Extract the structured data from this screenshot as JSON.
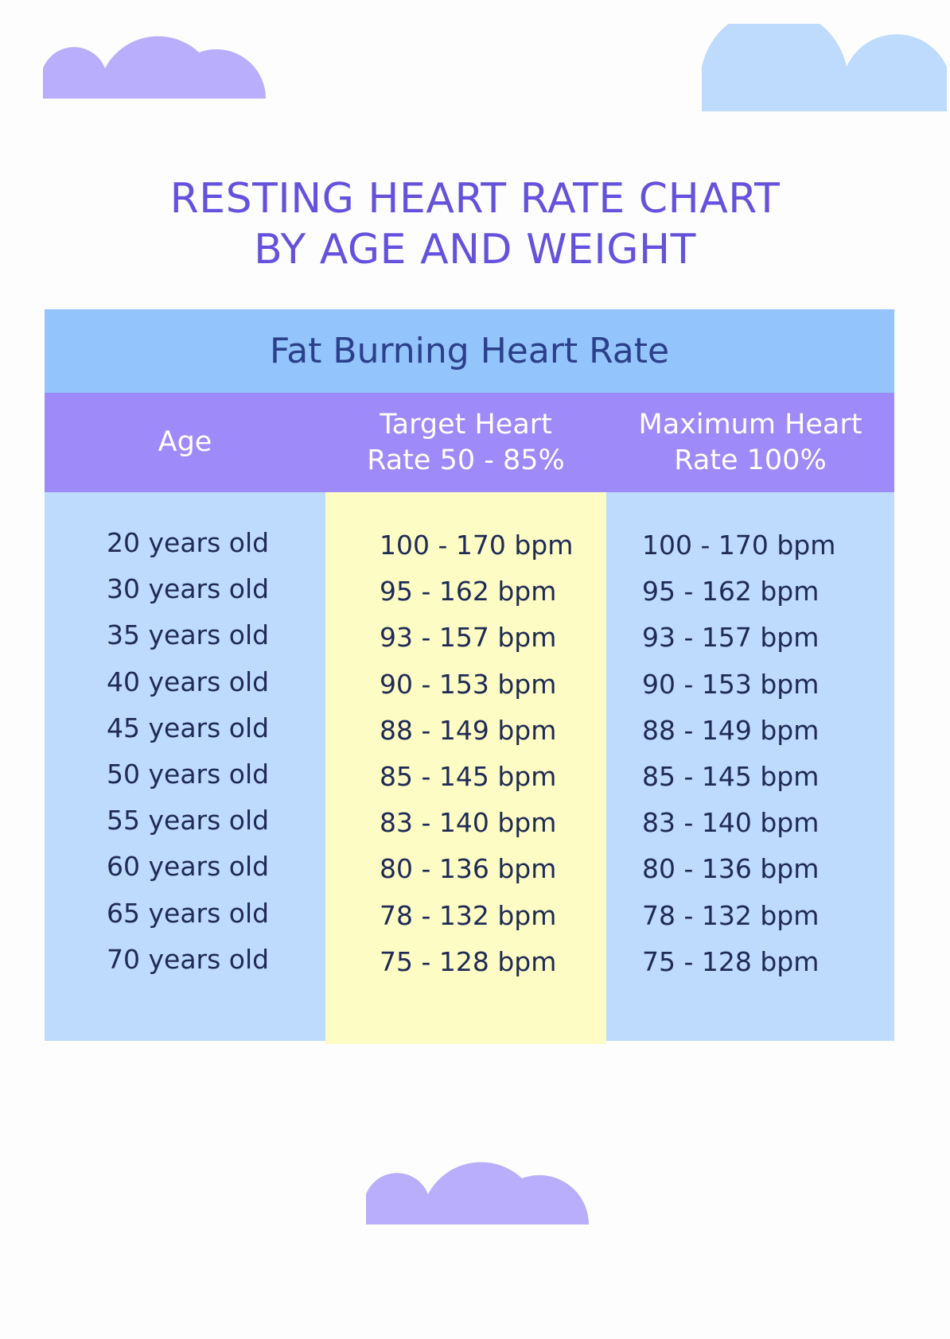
{
  "colors": {
    "background": "#fdfdfe",
    "title": "#6452dc",
    "table_header_bg": "#93c4fb",
    "table_header_text": "#2b3f8a",
    "column_header_bg": "#9e8af8",
    "column_header_text": "#ffffff",
    "side_column_bg": "#bedafd",
    "target_column_bg": "#fdfcc4",
    "cell_text": "#1f2a55",
    "cloud_purple": "#b8aefb",
    "cloud_blue": "#bedafd"
  },
  "title": "RESTING HEART RATE CHART\nBY AGE AND WEIGHT",
  "table": {
    "header": "Fat Burning Heart Rate",
    "columns": {
      "age": "Age",
      "target": "Target Heart\nRate 50 - 85%",
      "max": "Maximum Heart\nRate 100%"
    },
    "rows": [
      {
        "age": "20 years old",
        "target": "100 - 170 bpm",
        "max": "100 - 170 bpm"
      },
      {
        "age": "30 years old",
        "target": "95 - 162 bpm",
        "max": "95 - 162 bpm"
      },
      {
        "age": "35 years old",
        "target": "93 - 157 bpm",
        "max": "93 - 157 bpm"
      },
      {
        "age": "40 years old",
        "target": "90 - 153 bpm",
        "max": "90 - 153 bpm"
      },
      {
        "age": "45 years old",
        "target": "88 - 149 bpm",
        "max": "88 - 149 bpm"
      },
      {
        "age": "50 years old",
        "target": "85 - 145 bpm",
        "max": "85 - 145 bpm"
      },
      {
        "age": "55 years old",
        "target": "83 - 140 bpm",
        "max": "83 - 140 bpm"
      },
      {
        "age": "60 years old",
        "target": "80 - 136 bpm",
        "max": "80 - 136 bpm"
      },
      {
        "age": "65 years old",
        "target": "78 - 132 bpm",
        "max": "78 - 132 bpm"
      },
      {
        "age": "70 years old",
        "target": "75 - 128 bpm",
        "max": "75 - 128 bpm"
      }
    ]
  },
  "decorations": [
    "cloud-icon",
    "cloud-icon",
    "cloud-icon"
  ]
}
